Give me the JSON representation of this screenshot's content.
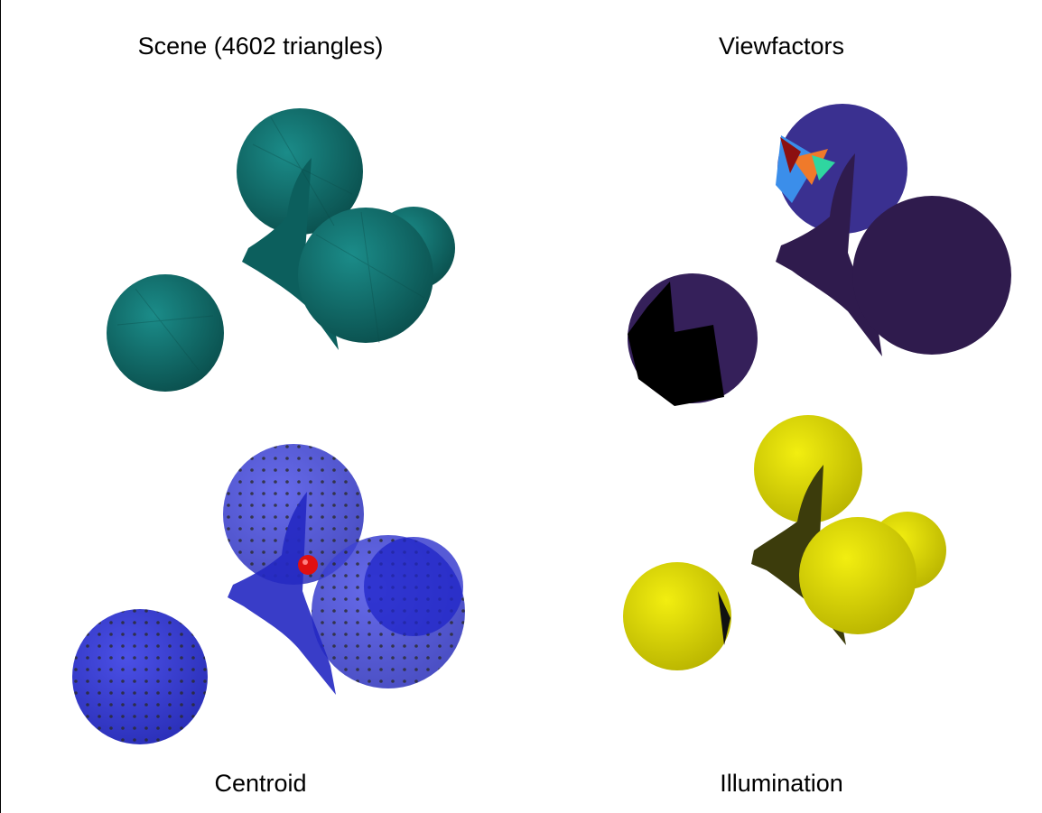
{
  "panels": {
    "scene": {
      "title": "Scene (4602 triangles)"
    },
    "viewfactors": {
      "title": "Viewfactors"
    },
    "centroid": {
      "title": "Centroid"
    },
    "illumination": {
      "title": "Illumination"
    }
  },
  "colors": {
    "scene_mesh": "#0f6a68",
    "viewfactor_low": "#2f1b4d",
    "viewfactor_mid": "#3b8eea",
    "viewfactor_high": "#f07a2a",
    "centroid_mesh": "#2f34d0",
    "centroid_point": "#e01010",
    "illumination_mesh": "#d9d400",
    "shadow": "#000000"
  }
}
